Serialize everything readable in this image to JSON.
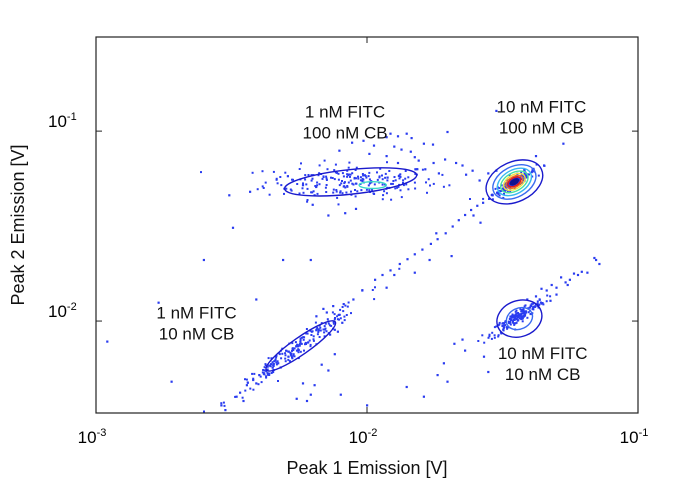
{
  "chart_data": {
    "type": "scatter",
    "title": "",
    "xlabel": "Peak 1 Emission  [V]",
    "ylabel": "Peak 2 Emission  [V]",
    "xscale": "log",
    "yscale": "log",
    "xlim": [
      0.001,
      0.1
    ],
    "ylim": [
      0.00328,
      0.313
    ],
    "grid": false,
    "x_ticks": [
      {
        "value": 0.001,
        "base": "10",
        "exp": "-3"
      },
      {
        "value": 0.01,
        "base": "10",
        "exp": "-2"
      },
      {
        "value": 0.1,
        "base": "10",
        "exp": "-1"
      }
    ],
    "y_ticks": [
      {
        "value": 0.01,
        "base": "10",
        "exp": "-2"
      },
      {
        "value": 0.1,
        "base": "10",
        "exp": "-1"
      }
    ],
    "point_color": "#2a3cf0",
    "annotations": [
      {
        "lines": [
          "1 nM FITC",
          "100 nM CB"
        ],
        "x": 0.0083,
        "y": 0.118
      },
      {
        "lines": [
          "10 nM FITC",
          "100 nM CB"
        ],
        "x": 0.044,
        "y": 0.125
      },
      {
        "lines": [
          "1 nM FITC",
          "10 nM CB"
        ],
        "x": 0.00235,
        "y": 0.0103
      },
      {
        "lines": [
          "10 nM FITC",
          "10 nM CB"
        ],
        "x": 0.0445,
        "y": 0.0063
      }
    ],
    "clusters": [
      {
        "name": "1 nM FITC / 100 nM CB",
        "center": [
          0.0088,
          0.054
        ],
        "spread": [
          0.16,
          0.045
        ],
        "n": 220,
        "contours": [
          {
            "level": 1,
            "color": "#1a1acc",
            "cx": 0.0087,
            "cy": 0.054,
            "rx_dec": 0.245,
            "ry_dec": 0.065,
            "tilt": -6
          },
          {
            "level": 2,
            "color": "#38d6c8",
            "cx": 0.0105,
            "cy": 0.052,
            "rx_dec": 0.05,
            "ry_dec": 0.018,
            "tilt": 0
          }
        ]
      },
      {
        "name": "10 nM FITC / 100 nM CB",
        "center": [
          0.035,
          0.054
        ],
        "spread": [
          0.04,
          0.03
        ],
        "n": 160,
        "contours": [
          {
            "level": 1,
            "color": "#1a1acc",
            "cx": 0.035,
            "cy": 0.054,
            "rx_dec": 0.11,
            "ry_dec": 0.105,
            "tilt": -25
          },
          {
            "level": 2,
            "color": "#3a6bf0",
            "cx": 0.035,
            "cy": 0.054,
            "rx_dec": 0.085,
            "ry_dec": 0.08,
            "tilt": -28
          },
          {
            "level": 3,
            "color": "#38b8f0",
            "cx": 0.035,
            "cy": 0.054,
            "rx_dec": 0.068,
            "ry_dec": 0.062,
            "tilt": -30
          },
          {
            "level": 4,
            "color": "#48e0a0",
            "cx": 0.035,
            "cy": 0.054,
            "rx_dec": 0.055,
            "ry_dec": 0.048,
            "tilt": -30
          },
          {
            "level": 5,
            "color": "#f0e040",
            "cx": 0.035,
            "cy": 0.054,
            "rx_dec": 0.043,
            "ry_dec": 0.037,
            "tilt": -30
          },
          {
            "level": 6,
            "color": "#f07020",
            "cx": 0.035,
            "cy": 0.054,
            "rx_dec": 0.034,
            "ry_dec": 0.028,
            "tilt": -30
          },
          {
            "level": 7,
            "color": "#e01818",
            "cx": 0.035,
            "cy": 0.054,
            "rx_dec": 0.026,
            "ry_dec": 0.021,
            "tilt": -30
          },
          {
            "level": 8,
            "color": "#101090",
            "cx": 0.035,
            "cy": 0.054,
            "rx_dec": 0.017,
            "ry_dec": 0.012,
            "tilt": -30
          }
        ]
      },
      {
        "name": "1 nM FITC / 10 nM CB",
        "center": [
          0.0055,
          0.0072
        ],
        "spread": [
          0.12,
          0.12
        ],
        "n": 200,
        "contours": [
          {
            "level": 1,
            "color": "#1a1acc",
            "cx": 0.0057,
            "cy": 0.0074,
            "rx_dec": 0.155,
            "ry_dec": 0.045,
            "tilt": -35
          }
        ]
      },
      {
        "name": "10 nM FITC / 10 nM CB",
        "center": [
          0.036,
          0.0105
        ],
        "spread": [
          0.05,
          0.05
        ],
        "n": 170,
        "contours": [
          {
            "level": 1,
            "color": "#1a1acc",
            "cx": 0.0365,
            "cy": 0.0103,
            "rx_dec": 0.085,
            "ry_dec": 0.095,
            "tilt": -20
          },
          {
            "level": 2,
            "color": "#3a6bf0",
            "cx": 0.0365,
            "cy": 0.0103,
            "rx_dec": 0.05,
            "ry_dec": 0.055,
            "tilt": -25
          }
        ]
      }
    ],
    "scatter_points": [
      [
        0.0011,
        0.0078
      ],
      [
        0.0017,
        0.0125
      ],
      [
        0.0019,
        0.0048
      ],
      [
        0.0025,
        0.021
      ],
      [
        0.0029,
        0.0036
      ],
      [
        0.0031,
        0.046
      ],
      [
        0.0032,
        0.031
      ],
      [
        0.0037,
        0.048
      ],
      [
        0.0049,
        0.021
      ],
      [
        0.0062,
        0.021
      ],
      [
        0.0039,
        0.013
      ],
      [
        0.0064,
        0.046
      ],
      [
        0.0051,
        0.058
      ],
      [
        0.0058,
        0.052
      ],
      [
        0.0063,
        0.041
      ],
      [
        0.0072,
        0.036
      ],
      [
        0.0083,
        0.037
      ],
      [
        0.0091,
        0.039
      ],
      [
        0.0079,
        0.079
      ],
      [
        0.0088,
        0.087
      ],
      [
        0.0097,
        0.089
      ],
      [
        0.0106,
        0.084
      ],
      [
        0.0118,
        0.093
      ],
      [
        0.0122,
        0.097
      ],
      [
        0.013,
        0.094
      ],
      [
        0.0126,
        0.083
      ],
      [
        0.0134,
        0.08
      ],
      [
        0.0145,
        0.078
      ],
      [
        0.0118,
        0.074
      ],
      [
        0.0102,
        0.076
      ],
      [
        0.014,
        0.097
      ],
      [
        0.0146,
        0.092
      ],
      [
        0.0155,
        0.07
      ],
      [
        0.0164,
        0.063
      ],
      [
        0.0176,
        0.068
      ],
      [
        0.0184,
        0.06
      ],
      [
        0.0198,
        0.099
      ],
      [
        0.0194,
        0.071
      ],
      [
        0.0225,
        0.066
      ],
      [
        0.0232,
        0.059
      ],
      [
        0.0245,
        0.062
      ],
      [
        0.013,
        0.068
      ],
      [
        0.0119,
        0.057
      ],
      [
        0.015,
        0.073
      ],
      [
        0.0162,
        0.086
      ],
      [
        0.0175,
        0.085
      ],
      [
        0.0213,
        0.068
      ],
      [
        0.026,
        0.055
      ],
      [
        0.028,
        0.06
      ],
      [
        0.03,
        0.062
      ],
      [
        0.042,
        0.074
      ],
      [
        0.053,
        0.086
      ],
      [
        0.045,
        0.066
      ],
      [
        0.03,
        0.128
      ],
      [
        0.0082,
        0.0123
      ],
      [
        0.0089,
        0.013
      ],
      [
        0.0096,
        0.0145
      ],
      [
        0.0107,
        0.0165
      ],
      [
        0.0114,
        0.0175
      ],
      [
        0.0122,
        0.0185
      ],
      [
        0.0132,
        0.02
      ],
      [
        0.0141,
        0.0212
      ],
      [
        0.015,
        0.0225
      ],
      [
        0.016,
        0.0238
      ],
      [
        0.0172,
        0.0255
      ],
      [
        0.0182,
        0.027
      ],
      [
        0.0195,
        0.029
      ],
      [
        0.0207,
        0.0315
      ],
      [
        0.0218,
        0.034
      ],
      [
        0.023,
        0.0362
      ],
      [
        0.0242,
        0.0385
      ],
      [
        0.0255,
        0.0405
      ],
      [
        0.0268,
        0.042
      ],
      [
        0.0282,
        0.044
      ],
      [
        0.029,
        0.046
      ],
      [
        0.017,
        0.021
      ],
      [
        0.015,
        0.018
      ],
      [
        0.0126,
        0.0175
      ],
      [
        0.0118,
        0.015
      ],
      [
        0.018,
        0.029
      ],
      [
        0.0205,
        0.022
      ],
      [
        0.0247,
        0.036
      ],
      [
        0.0262,
        0.033
      ],
      [
        0.0065,
        0.0106
      ],
      [
        0.0069,
        0.0116
      ],
      [
        0.0071,
        0.0111
      ],
      [
        0.0075,
        0.012
      ],
      [
        0.021,
        0.0076
      ],
      [
        0.023,
        0.007
      ],
      [
        0.0225,
        0.008
      ],
      [
        0.0192,
        0.006
      ],
      [
        0.0182,
        0.0052
      ],
      [
        0.0198,
        0.0048
      ],
      [
        0.0162,
        0.004
      ],
      [
        0.014,
        0.0045
      ],
      [
        0.01,
        0.0036
      ],
      [
        0.008,
        0.0041
      ],
      [
        0.0064,
        0.0046
      ],
      [
        0.006,
        0.0038
      ],
      [
        0.028,
        0.0054
      ],
      [
        0.027,
        0.0065
      ],
      [
        0.042,
        0.0135
      ],
      [
        0.046,
        0.0145
      ],
      [
        0.05,
        0.015
      ],
      [
        0.056,
        0.0165
      ],
      [
        0.06,
        0.0175
      ],
      [
        0.065,
        0.018
      ],
      [
        0.07,
        0.021
      ],
      [
        0.072,
        0.02
      ],
      [
        0.069,
        0.0215
      ],
      [
        0.054,
        0.016
      ],
      [
        0.048,
        0.0155
      ],
      [
        0.044,
        0.0148
      ],
      [
        0.052,
        0.017
      ],
      [
        0.058,
        0.0178
      ],
      [
        0.062,
        0.0182
      ],
      [
        0.0475,
        0.0128
      ],
      [
        0.043,
        0.0122
      ],
      [
        0.05,
        0.0138
      ],
      [
        0.055,
        0.0155
      ],
      [
        0.041,
        0.0118
      ],
      [
        0.039,
        0.013
      ],
      [
        0.003,
        0.0034
      ],
      [
        0.0034,
        0.0042
      ],
      [
        0.0036,
        0.0046
      ],
      [
        0.0038,
        0.0049
      ],
      [
        0.004,
        0.0052
      ],
      [
        0.0042,
        0.0055
      ],
      [
        0.0044,
        0.0058
      ],
      [
        0.0045,
        0.0054
      ],
      [
        0.0047,
        0.006
      ],
      [
        0.0048,
        0.0057
      ],
      [
        0.0039,
        0.0047
      ],
      [
        0.0035,
        0.0038
      ],
      [
        0.0033,
        0.004
      ],
      [
        0.0073,
        0.0085
      ],
      [
        0.0076,
        0.009
      ],
      [
        0.0078,
        0.0088
      ],
      [
        0.0081,
        0.0098
      ],
      [
        0.0076,
        0.0067
      ],
      [
        0.0072,
        0.0055
      ],
      [
        0.0068,
        0.0059
      ],
      [
        0.0058,
        0.0047
      ],
      [
        0.0062,
        0.0041
      ],
      [
        0.0055,
        0.0039
      ]
    ]
  }
}
